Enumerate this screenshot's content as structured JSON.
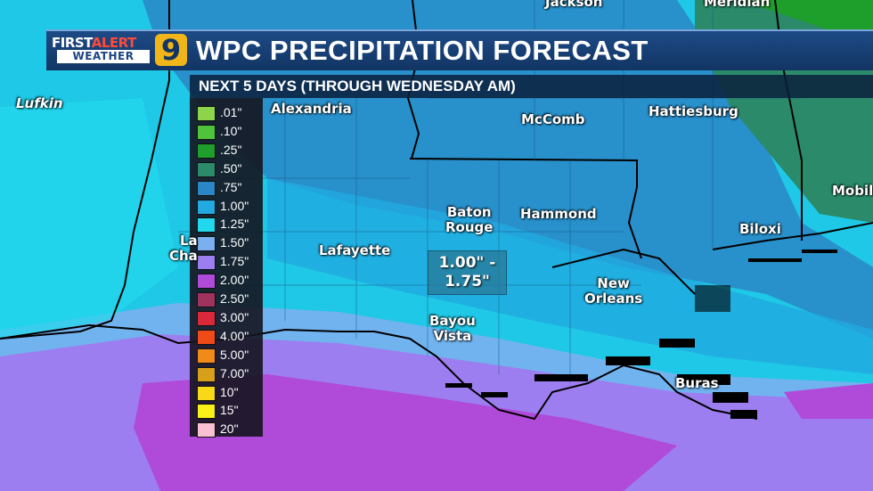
{
  "branding": {
    "logo_first": "FIRST",
    "logo_alert": "ALERT",
    "logo_weather": "WEATHER",
    "logo_number": "9"
  },
  "header": {
    "title": "WPC PRECIPITATION FORECAST",
    "subtitle": "NEXT 5 DAYS (THROUGH WEDNESDAY AM)"
  },
  "legend": [
    {
      "label": ".01\"",
      "color": "#8ed44a"
    },
    {
      "label": ".10\"",
      "color": "#4fc43a"
    },
    {
      "label": ".25\"",
      "color": "#1e9e2a"
    },
    {
      "label": ".50\"",
      "color": "#2a8a6a"
    },
    {
      "label": ".75\"",
      "color": "#2a86c4"
    },
    {
      "label": "1.00\"",
      "color": "#21a9e0"
    },
    {
      "label": "1.25\"",
      "color": "#22d8ee"
    },
    {
      "label": "1.50\"",
      "color": "#7ab0f0"
    },
    {
      "label": "1.75\"",
      "color": "#9d7ef0"
    },
    {
      "label": "2.00\"",
      "color": "#b04ad8"
    },
    {
      "label": "2.50\"",
      "color": "#a0325e"
    },
    {
      "label": "3.00\"",
      "color": "#d8283a"
    },
    {
      "label": "4.00\"",
      "color": "#f04a18"
    },
    {
      "label": "5.00\"",
      "color": "#f08a18"
    },
    {
      "label": "7.00\"",
      "color": "#d8a01a"
    },
    {
      "label": "10\"",
      "color": "#f8d818"
    },
    {
      "label": "15\"",
      "color": "#f8f018"
    },
    {
      "label": "20\"",
      "color": "#f8c0d0"
    }
  ],
  "callout": {
    "line1": "1.00\" -",
    "line2": "1.75\""
  },
  "cities": {
    "jackson": "Jackson",
    "meridian": "Meridian",
    "lufkin": "Lufkin",
    "alexandria": "Alexandria",
    "mccomb": "McComb",
    "hattiesburg": "Hattiesburg",
    "mobile": "Mobil",
    "baton_rouge_1": "Baton",
    "baton_rouge_2": "Rouge",
    "hammond": "Hammond",
    "biloxi": "Biloxi",
    "lake_charles_1": "La",
    "lake_charles_2": "Cha",
    "lafayette": "Lafayette",
    "new_orleans_1": "New",
    "new_orleans_2": "Orleans",
    "bayou_vista_1": "Bayou",
    "bayou_vista_2": "Vista",
    "buras": "Buras"
  },
  "colors": {
    "accent": "#123563",
    "rain_low": "#1fc8e6",
    "rain_mid": "#2a86c4",
    "rain_high": "#9d7ef0",
    "rain_top": "#b04ad8"
  }
}
